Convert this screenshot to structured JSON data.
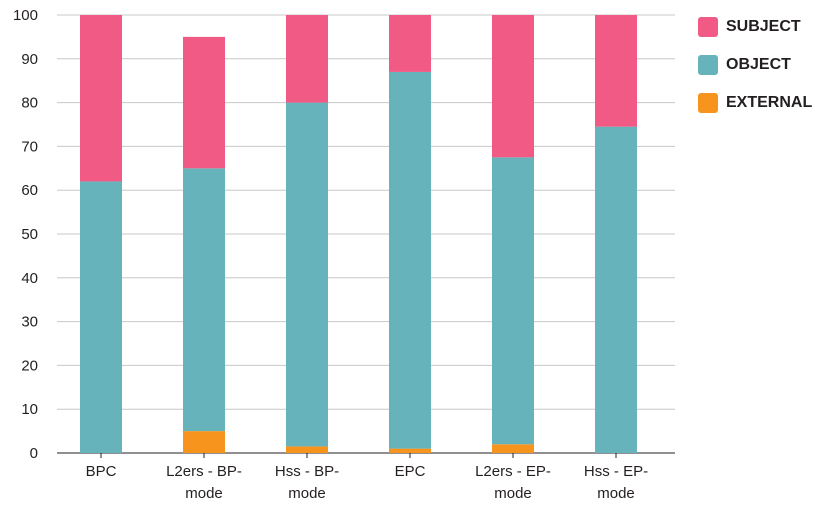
{
  "chart_data": {
    "type": "bar",
    "stacked": true,
    "categories": [
      [
        "BPC"
      ],
      [
        "L2ers - BP-",
        "mode"
      ],
      [
        "Hss - BP-",
        "mode"
      ],
      [
        "EPC"
      ],
      [
        "L2ers - EP-",
        "mode"
      ],
      [
        "Hss - EP-",
        "mode"
      ]
    ],
    "series": [
      {
        "name": "EXTERNAL",
        "color": "#f7941d",
        "values": [
          0,
          5,
          1.5,
          1,
          2,
          0
        ]
      },
      {
        "name": "OBJECT",
        "color": "#66b3bc",
        "values": [
          62,
          60,
          78.5,
          86,
          65.5,
          74.5
        ]
      },
      {
        "name": "SUBJECT",
        "color": "#f05a84",
        "values": [
          38,
          30,
          20,
          13,
          32.5,
          25.5
        ]
      }
    ],
    "legend_order": [
      "SUBJECT",
      "OBJECT",
      "EXTERNAL"
    ],
    "ylim": [
      0,
      100
    ],
    "yticks": [
      0,
      10,
      20,
      30,
      40,
      50,
      60,
      70,
      80,
      90,
      100
    ],
    "grid": true,
    "legend_position": "top-right",
    "title": "",
    "xlabel": "",
    "ylabel": ""
  }
}
